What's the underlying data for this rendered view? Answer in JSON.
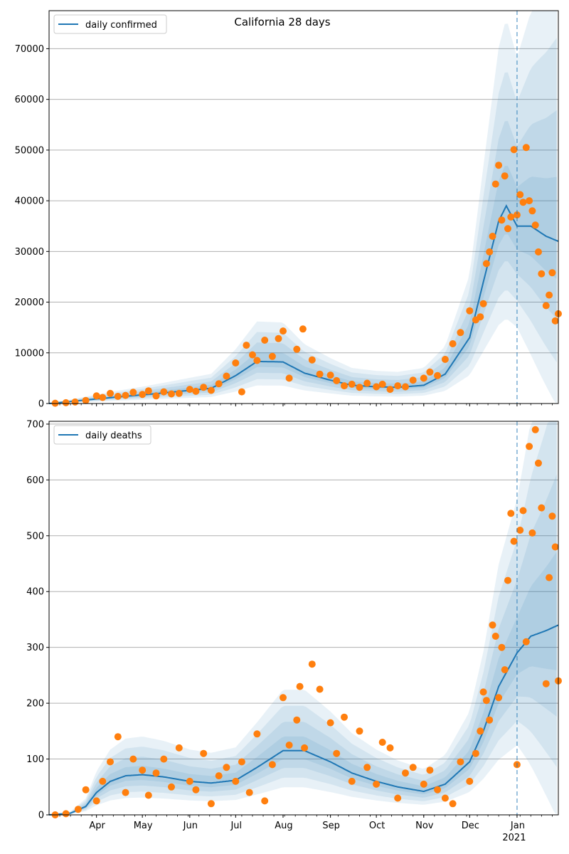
{
  "figure": {
    "title": "California 28 days"
  },
  "chart_data": [
    {
      "type": "line",
      "title": "California 28 days",
      "legend": {
        "label": "daily confirmed",
        "placement": "top-left"
      },
      "ylim": [
        0,
        77500
      ],
      "yticks": [
        0,
        10000,
        20000,
        30000,
        40000,
        50000,
        60000,
        70000
      ],
      "grid": "horizontal",
      "x_range": [
        "2020-03-01",
        "2021-01-28"
      ],
      "forecast_start": "2021-01-01",
      "colors": {
        "line": "#1f77b4",
        "band": "#1f77b4",
        "points": "#ff7f0e",
        "vline": "#1f77b4"
      },
      "series": [
        {
          "name": "daily confirmed",
          "kind": "model-median",
          "x": [
            "2020-03-01",
            "2020-03-15",
            "2020-04-01",
            "2020-04-15",
            "2020-05-01",
            "2020-05-15",
            "2020-06-01",
            "2020-06-15",
            "2020-07-01",
            "2020-07-15",
            "2020-08-01",
            "2020-08-15",
            "2020-09-01",
            "2020-09-15",
            "2020-10-01",
            "2020-10-15",
            "2020-11-01",
            "2020-11-15",
            "2020-12-01",
            "2020-12-10",
            "2020-12-20",
            "2020-12-25",
            "2021-01-01",
            "2021-01-10",
            "2021-01-20",
            "2021-01-28"
          ],
          "values": [
            0,
            400,
            900,
            1300,
            1700,
            2100,
            2600,
            3000,
            5500,
            8300,
            8200,
            6000,
            4600,
            3600,
            3300,
            3200,
            3600,
            5800,
            13000,
            24000,
            36000,
            39000,
            35000,
            35000,
            33000,
            32000
          ]
        },
        {
          "name": "daily confirmed",
          "kind": "observed",
          "x": [
            "2020-03-05",
            "2020-03-12",
            "2020-03-18",
            "2020-03-25",
            "2020-04-01",
            "2020-04-05",
            "2020-04-10",
            "2020-04-15",
            "2020-04-20",
            "2020-04-25",
            "2020-05-01",
            "2020-05-05",
            "2020-05-10",
            "2020-05-15",
            "2020-05-20",
            "2020-05-25",
            "2020-06-01",
            "2020-06-05",
            "2020-06-10",
            "2020-06-15",
            "2020-06-20",
            "2020-06-25",
            "2020-07-01",
            "2020-07-05",
            "2020-07-08",
            "2020-07-12",
            "2020-07-15",
            "2020-07-20",
            "2020-07-25",
            "2020-07-29",
            "2020-08-01",
            "2020-08-05",
            "2020-08-10",
            "2020-08-14",
            "2020-08-20",
            "2020-08-25",
            "2020-09-01",
            "2020-09-05",
            "2020-09-10",
            "2020-09-15",
            "2020-09-20",
            "2020-09-25",
            "2020-10-01",
            "2020-10-05",
            "2020-10-10",
            "2020-10-15",
            "2020-10-20",
            "2020-10-25",
            "2020-11-01",
            "2020-11-05",
            "2020-11-10",
            "2020-11-15",
            "2020-11-20",
            "2020-11-25",
            "2020-12-01",
            "2020-12-05",
            "2020-12-08",
            "2020-12-10",
            "2020-12-12",
            "2020-12-14",
            "2020-12-16",
            "2020-12-18",
            "2020-12-20",
            "2020-12-22",
            "2020-12-24",
            "2020-12-26",
            "2020-12-28",
            "2020-12-30",
            "2021-01-01",
            "2021-01-03",
            "2021-01-05",
            "2021-01-07",
            "2021-01-09",
            "2021-01-11",
            "2021-01-13",
            "2021-01-15",
            "2021-01-17",
            "2021-01-20",
            "2021-01-22",
            "2021-01-24",
            "2021-01-26",
            "2021-01-28"
          ],
          "values": [
            50,
            150,
            300,
            600,
            1500,
            1200,
            2000,
            1400,
            1600,
            2200,
            1800,
            2500,
            1500,
            2300,
            1900,
            2000,
            2800,
            2400,
            3200,
            2600,
            3900,
            5400,
            8000,
            2300,
            11500,
            9600,
            8500,
            12500,
            9300,
            12800,
            14300,
            5000,
            10700,
            14700,
            8600,
            5800,
            5600,
            4500,
            3500,
            3800,
            3200,
            4000,
            3300,
            3800,
            2800,
            3500,
            3300,
            4600,
            5000,
            6200,
            5500,
            8700,
            11800,
            14000,
            18300,
            16500,
            17100,
            19700,
            27600,
            29900,
            33000,
            43300,
            47000,
            36200,
            44900,
            34500,
            36800,
            50100,
            37200,
            41200,
            39700,
            50500,
            40000,
            38000,
            35200,
            29900,
            25600,
            19300,
            21400,
            25800,
            16300,
            17700
          ]
        }
      ]
    },
    {
      "type": "line",
      "legend": {
        "label": "daily deaths",
        "placement": "top-left"
      },
      "ylim": [
        0,
        705
      ],
      "yticks": [
        0,
        100,
        200,
        300,
        400,
        500,
        600,
        700
      ],
      "grid": "horizontal",
      "x_range": [
        "2020-03-01",
        "2021-01-28"
      ],
      "forecast_start": "2021-01-01",
      "xticks": [
        {
          "date": "2020-04-01",
          "label": "Apr"
        },
        {
          "date": "2020-05-01",
          "label": "May"
        },
        {
          "date": "2020-06-01",
          "label": "Jun"
        },
        {
          "date": "2020-07-01",
          "label": "Jul"
        },
        {
          "date": "2020-08-01",
          "label": "Aug"
        },
        {
          "date": "2020-09-01",
          "label": "Sep"
        },
        {
          "date": "2020-10-01",
          "label": "Oct"
        },
        {
          "date": "2020-11-01",
          "label": "Nov"
        },
        {
          "date": "2020-12-01",
          "label": "Dec"
        },
        {
          "date": "2021-01-01",
          "label": "Jan"
        }
      ],
      "xtick_year_label": "2021",
      "colors": {
        "line": "#1f77b4",
        "band": "#1f77b4",
        "points": "#ff7f0e",
        "vline": "#1f77b4"
      },
      "series": [
        {
          "name": "daily deaths",
          "kind": "model-median",
          "x": [
            "2020-03-01",
            "2020-03-15",
            "2020-03-25",
            "2020-04-01",
            "2020-04-10",
            "2020-04-20",
            "2020-05-01",
            "2020-05-15",
            "2020-06-01",
            "2020-06-15",
            "2020-07-01",
            "2020-07-15",
            "2020-08-01",
            "2020-08-15",
            "2020-09-01",
            "2020-09-15",
            "2020-10-01",
            "2020-10-15",
            "2020-11-01",
            "2020-11-15",
            "2020-12-01",
            "2020-12-10",
            "2020-12-20",
            "2021-01-01",
            "2021-01-10",
            "2021-01-20",
            "2021-01-28"
          ],
          "values": [
            0,
            3,
            15,
            40,
            60,
            70,
            72,
            68,
            60,
            57,
            62,
            85,
            115,
            115,
            95,
            75,
            60,
            50,
            42,
            55,
            95,
            150,
            230,
            290,
            320,
            330,
            340
          ]
        },
        {
          "name": "daily deaths",
          "kind": "observed",
          "x": [
            "2020-03-05",
            "2020-03-12",
            "2020-03-20",
            "2020-03-25",
            "2020-04-01",
            "2020-04-05",
            "2020-04-10",
            "2020-04-15",
            "2020-04-20",
            "2020-04-25",
            "2020-05-01",
            "2020-05-05",
            "2020-05-10",
            "2020-05-15",
            "2020-05-20",
            "2020-05-25",
            "2020-06-01",
            "2020-06-05",
            "2020-06-10",
            "2020-06-15",
            "2020-06-20",
            "2020-06-25",
            "2020-07-01",
            "2020-07-05",
            "2020-07-10",
            "2020-07-15",
            "2020-07-20",
            "2020-07-25",
            "2020-08-01",
            "2020-08-05",
            "2020-08-10",
            "2020-08-12",
            "2020-08-15",
            "2020-08-20",
            "2020-08-25",
            "2020-09-01",
            "2020-09-05",
            "2020-09-10",
            "2020-09-15",
            "2020-09-20",
            "2020-09-25",
            "2020-10-01",
            "2020-10-05",
            "2020-10-10",
            "2020-10-15",
            "2020-10-20",
            "2020-10-25",
            "2020-11-01",
            "2020-11-05",
            "2020-11-10",
            "2020-11-15",
            "2020-11-20",
            "2020-11-25",
            "2020-12-01",
            "2020-12-05",
            "2020-12-08",
            "2020-12-10",
            "2020-12-12",
            "2020-12-14",
            "2020-12-16",
            "2020-12-18",
            "2020-12-20",
            "2020-12-22",
            "2020-12-24",
            "2020-12-26",
            "2020-12-28",
            "2020-12-30",
            "2021-01-01",
            "2021-01-03",
            "2021-01-05",
            "2021-01-07",
            "2021-01-09",
            "2021-01-11",
            "2021-01-13",
            "2021-01-15",
            "2021-01-17",
            "2021-01-20",
            "2021-01-22",
            "2021-01-24",
            "2021-01-26",
            "2021-01-28"
          ],
          "values": [
            0,
            2,
            10,
            45,
            25,
            60,
            95,
            140,
            40,
            100,
            80,
            35,
            75,
            100,
            50,
            120,
            60,
            45,
            110,
            20,
            70,
            85,
            60,
            95,
            40,
            145,
            25,
            90,
            210,
            125,
            170,
            230,
            120,
            270,
            225,
            165,
            110,
            175,
            60,
            150,
            85,
            55,
            130,
            120,
            30,
            75,
            85,
            55,
            80,
            45,
            30,
            20,
            95,
            60,
            110,
            150,
            220,
            205,
            170,
            340,
            320,
            210,
            300,
            260,
            420,
            540,
            490,
            90,
            510,
            545,
            310,
            660,
            505,
            690,
            630,
            550,
            235,
            425,
            535,
            480,
            240
          ]
        }
      ]
    }
  ]
}
